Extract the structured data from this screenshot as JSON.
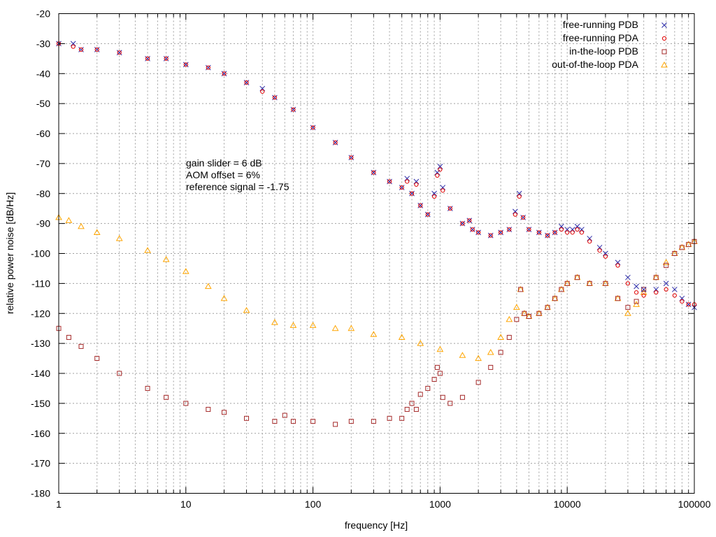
{
  "chart_data": {
    "type": "scatter",
    "xlabel": "frequency [Hz]",
    "ylabel": "relative power noise [dB/Hz]",
    "xscale": "log",
    "xlim": [
      1,
      100000
    ],
    "ylim": [
      -180,
      -20
    ],
    "grid": true,
    "legend_position": "top-right",
    "x_ticks": [
      "1",
      "10",
      "100",
      "1000",
      "10000",
      "100000"
    ],
    "y_ticks": [
      "-20",
      "-30",
      "-40",
      "-50",
      "-60",
      "-70",
      "-80",
      "-90",
      "-100",
      "-110",
      "-120",
      "-130",
      "-140",
      "-150",
      "-160",
      "-170",
      "-180"
    ],
    "annotations": [
      "gain slider = 6 dB",
      "AOM offset = 6%",
      "reference signal = -1.75"
    ],
    "series": [
      {
        "name": "free-running PDB",
        "marker": "x",
        "color": "#2a2aa8",
        "x": [
          1,
          1.3,
          1.5,
          2,
          3,
          5,
          7,
          10,
          15,
          20,
          30,
          40,
          50,
          70,
          100,
          150,
          200,
          300,
          400,
          500,
          550,
          600,
          650,
          700,
          800,
          900,
          950,
          1000,
          1050,
          1200,
          1500,
          1700,
          1800,
          2000,
          2500,
          3000,
          3500,
          3900,
          4200,
          4500,
          5000,
          6000,
          7000,
          8000,
          9000,
          10000,
          11000,
          12000,
          13000,
          15000,
          18000,
          20000,
          25000,
          30000,
          35000,
          40000,
          50000,
          60000,
          70000,
          80000,
          90000,
          100000
        ],
        "y": [
          -30,
          -30,
          -32,
          -32,
          -33,
          -35,
          -35,
          -37,
          -38,
          -40,
          -43,
          -45,
          -48,
          -52,
          -58,
          -63,
          -68,
          -73,
          -76,
          -78,
          -75,
          -80,
          -76,
          -84,
          -87,
          -80,
          -73,
          -71,
          -78,
          -85,
          -90,
          -89,
          -92,
          -93,
          -94,
          -93,
          -92,
          -86,
          -80,
          -88,
          -92,
          -93,
          -94,
          -93,
          -91,
          -92,
          -92,
          -91,
          -92,
          -95,
          -98,
          -100,
          -103,
          -108,
          -111,
          -112,
          -112,
          -110,
          -112,
          -115,
          -117,
          -118
        ]
      },
      {
        "name": "free-running PDA",
        "marker": "circle",
        "color": "#e00000",
        "x": [
          1,
          1.3,
          1.5,
          2,
          3,
          5,
          7,
          10,
          15,
          20,
          30,
          40,
          50,
          70,
          100,
          150,
          200,
          300,
          400,
          500,
          550,
          600,
          650,
          700,
          800,
          900,
          950,
          1000,
          1050,
          1200,
          1500,
          1700,
          1800,
          2000,
          2500,
          3000,
          3500,
          3900,
          4200,
          4500,
          5000,
          6000,
          7000,
          8000,
          9000,
          10000,
          11000,
          12000,
          13000,
          15000,
          18000,
          20000,
          25000,
          30000,
          35000,
          40000,
          50000,
          60000,
          70000,
          80000,
          90000,
          100000
        ],
        "y": [
          -30,
          -31,
          -32,
          -32,
          -33,
          -35,
          -35,
          -37,
          -38,
          -40,
          -43,
          -46,
          -48,
          -52,
          -58,
          -63,
          -68,
          -73,
          -76,
          -78,
          -76,
          -80,
          -77,
          -84,
          -87,
          -81,
          -74,
          -72,
          -79,
          -85,
          -90,
          -89,
          -92,
          -93,
          -94,
          -93,
          -92,
          -87,
          -81,
          -88,
          -92,
          -93,
          -94,
          -93,
          -92,
          -93,
          -93,
          -92,
          -93,
          -96,
          -99,
          -101,
          -104,
          -110,
          -113,
          -114,
          -113,
          -112,
          -114,
          -116,
          -117,
          -117
        ]
      },
      {
        "name": "in-the-loop PDB",
        "marker": "square",
        "color": "#a52a2a",
        "x": [
          1,
          1.2,
          1.5,
          2,
          3,
          5,
          7,
          10,
          15,
          20,
          30,
          50,
          60,
          70,
          100,
          150,
          200,
          300,
          400,
          500,
          550,
          600,
          650,
          700,
          800,
          900,
          950,
          1000,
          1050,
          1200,
          1500,
          2000,
          2500,
          3000,
          3500,
          4000,
          4300,
          4600,
          5000,
          6000,
          7000,
          8000,
          9000,
          10000,
          12000,
          15000,
          20000,
          25000,
          30000,
          35000,
          40000,
          50000,
          60000,
          70000,
          80000,
          90000,
          100000
        ],
        "y": [
          -125,
          -128,
          -131,
          -135,
          -140,
          -145,
          -148,
          -150,
          -152,
          -153,
          -155,
          -156,
          -154,
          -156,
          -156,
          -157,
          -156,
          -156,
          -155,
          -155,
          -152,
          -150,
          -152,
          -147,
          -145,
          -142,
          -138,
          -140,
          -148,
          -150,
          -148,
          -143,
          -138,
          -133,
          -128,
          -122,
          -112,
          -120,
          -121,
          -120,
          -118,
          -115,
          -112,
          -110,
          -108,
          -110,
          -110,
          -115,
          -118,
          -116,
          -112,
          -108,
          -104,
          -100,
          -98,
          -97,
          -96
        ]
      },
      {
        "name": "out-of-the-loop PDA",
        "marker": "triangle",
        "color": "#ffa500",
        "x": [
          1,
          1.2,
          1.5,
          2,
          3,
          5,
          7,
          10,
          15,
          20,
          30,
          50,
          70,
          100,
          150,
          200,
          300,
          500,
          700,
          1000,
          1500,
          2000,
          2500,
          3000,
          3500,
          4000,
          4300,
          4600,
          5000,
          6000,
          7000,
          8000,
          9000,
          10000,
          12000,
          15000,
          20000,
          25000,
          30000,
          35000,
          40000,
          50000,
          60000,
          70000,
          80000,
          90000,
          100000
        ],
        "y": [
          -88,
          -89,
          -91,
          -93,
          -95,
          -99,
          -102,
          -106,
          -111,
          -115,
          -119,
          -123,
          -124,
          -124,
          -125,
          -125,
          -127,
          -128,
          -130,
          -132,
          -134,
          -135,
          -133,
          -128,
          -122,
          -118,
          -112,
          -120,
          -121,
          -120,
          -118,
          -115,
          -112,
          -110,
          -108,
          -110,
          -110,
          -115,
          -120,
          -117,
          -113,
          -108,
          -103,
          -100,
          -98,
          -97,
          -96
        ]
      }
    ]
  }
}
